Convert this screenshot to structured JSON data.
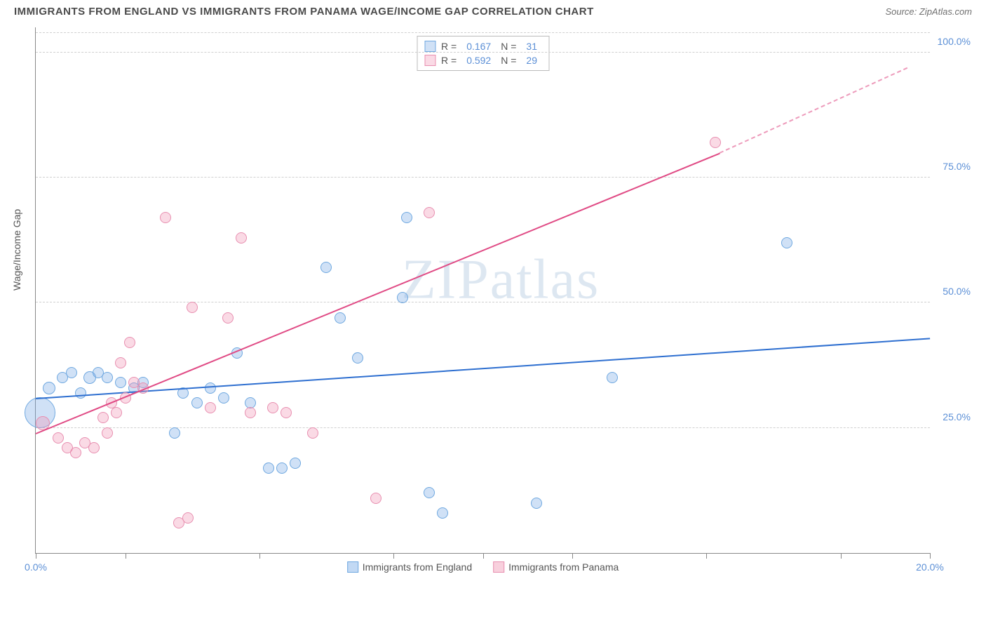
{
  "header": {
    "title": "IMMIGRANTS FROM ENGLAND VS IMMIGRANTS FROM PANAMA WAGE/INCOME GAP CORRELATION CHART",
    "source": "Source: ZipAtlas.com"
  },
  "watermark": "ZIPatlas",
  "chart": {
    "type": "scatter",
    "xlim": [
      0,
      20
    ],
    "ylim": [
      0,
      105
    ],
    "y_axis_title": "Wage/Income Gap",
    "y_ticks": [
      {
        "v": 25,
        "label": "25.0%"
      },
      {
        "v": 50,
        "label": "50.0%"
      },
      {
        "v": 75,
        "label": "75.0%"
      },
      {
        "v": 100,
        "label": "100.0%"
      }
    ],
    "x_ticks": [
      0,
      2,
      5,
      8,
      10,
      12,
      15,
      18,
      20
    ],
    "x_labels": [
      {
        "v": 0,
        "label": "0.0%"
      },
      {
        "v": 20,
        "label": "20.0%"
      }
    ],
    "grid_color": "#d0d0d0",
    "background_color": "#ffffff",
    "series": [
      {
        "name": "Immigrants from England",
        "color_fill": "rgba(120, 170, 230, 0.35)",
        "color_stroke": "#6fa8e0",
        "trend_color": "#2e6fd0",
        "R": "0.167",
        "N": "31",
        "trend": {
          "x1": 0,
          "y1": 31,
          "x2": 20,
          "y2": 43
        },
        "points": [
          {
            "x": 0.1,
            "y": 28,
            "r": 22
          },
          {
            "x": 0.3,
            "y": 33,
            "r": 9
          },
          {
            "x": 0.6,
            "y": 35,
            "r": 8
          },
          {
            "x": 0.8,
            "y": 36,
            "r": 8
          },
          {
            "x": 1.0,
            "y": 32,
            "r": 8
          },
          {
            "x": 1.2,
            "y": 35,
            "r": 9
          },
          {
            "x": 1.4,
            "y": 36,
            "r": 8
          },
          {
            "x": 1.6,
            "y": 35,
            "r": 8
          },
          {
            "x": 1.9,
            "y": 34,
            "r": 8
          },
          {
            "x": 2.2,
            "y": 33,
            "r": 8
          },
          {
            "x": 2.4,
            "y": 34,
            "r": 8
          },
          {
            "x": 3.1,
            "y": 24,
            "r": 8
          },
          {
            "x": 3.3,
            "y": 32,
            "r": 8
          },
          {
            "x": 3.6,
            "y": 30,
            "r": 8
          },
          {
            "x": 3.9,
            "y": 33,
            "r": 8
          },
          {
            "x": 4.2,
            "y": 31,
            "r": 8
          },
          {
            "x": 4.5,
            "y": 40,
            "r": 8
          },
          {
            "x": 4.8,
            "y": 30,
            "r": 8
          },
          {
            "x": 5.2,
            "y": 17,
            "r": 8
          },
          {
            "x": 5.5,
            "y": 17,
            "r": 8
          },
          {
            "x": 5.8,
            "y": 18,
            "r": 8
          },
          {
            "x": 6.5,
            "y": 57,
            "r": 8
          },
          {
            "x": 6.8,
            "y": 47,
            "r": 8
          },
          {
            "x": 7.2,
            "y": 39,
            "r": 8
          },
          {
            "x": 8.2,
            "y": 51,
            "r": 8
          },
          {
            "x": 8.3,
            "y": 67,
            "r": 8
          },
          {
            "x": 8.8,
            "y": 12,
            "r": 8
          },
          {
            "x": 9.1,
            "y": 8,
            "r": 8
          },
          {
            "x": 11.2,
            "y": 10,
            "r": 8
          },
          {
            "x": 12.9,
            "y": 35,
            "r": 8
          },
          {
            "x": 16.8,
            "y": 62,
            "r": 8
          }
        ]
      },
      {
        "name": "Immigrants from Panama",
        "color_fill": "rgba(240, 150, 180, 0.35)",
        "color_stroke": "#e88fb0",
        "trend_color": "#e04b85",
        "R": "0.592",
        "N": "29",
        "trend": {
          "x1": 0,
          "y1": 24,
          "x2": 15.3,
          "y2": 80
        },
        "trend_dash": {
          "x1": 15.3,
          "y1": 80,
          "x2": 19.5,
          "y2": 97
        },
        "points": [
          {
            "x": 0.15,
            "y": 26,
            "r": 10
          },
          {
            "x": 0.5,
            "y": 23,
            "r": 8
          },
          {
            "x": 0.7,
            "y": 21,
            "r": 8
          },
          {
            "x": 0.9,
            "y": 20,
            "r": 8
          },
          {
            "x": 1.1,
            "y": 22,
            "r": 8
          },
          {
            "x": 1.3,
            "y": 21,
            "r": 8
          },
          {
            "x": 1.5,
            "y": 27,
            "r": 8
          },
          {
            "x": 1.6,
            "y": 24,
            "r": 8
          },
          {
            "x": 1.7,
            "y": 30,
            "r": 8
          },
          {
            "x": 1.8,
            "y": 28,
            "r": 8
          },
          {
            "x": 1.9,
            "y": 38,
            "r": 8
          },
          {
            "x": 2.0,
            "y": 31,
            "r": 8
          },
          {
            "x": 2.1,
            "y": 42,
            "r": 8
          },
          {
            "x": 2.2,
            "y": 34,
            "r": 8
          },
          {
            "x": 2.4,
            "y": 33,
            "r": 8
          },
          {
            "x": 2.9,
            "y": 67,
            "r": 8
          },
          {
            "x": 3.2,
            "y": 6,
            "r": 8
          },
          {
            "x": 3.4,
            "y": 7,
            "r": 8
          },
          {
            "x": 3.5,
            "y": 49,
            "r": 8
          },
          {
            "x": 3.9,
            "y": 29,
            "r": 8
          },
          {
            "x": 4.3,
            "y": 47,
            "r": 8
          },
          {
            "x": 4.6,
            "y": 63,
            "r": 8
          },
          {
            "x": 4.8,
            "y": 28,
            "r": 8
          },
          {
            "x": 5.3,
            "y": 29,
            "r": 8
          },
          {
            "x": 5.6,
            "y": 28,
            "r": 8
          },
          {
            "x": 6.2,
            "y": 24,
            "r": 8
          },
          {
            "x": 7.6,
            "y": 11,
            "r": 8
          },
          {
            "x": 8.8,
            "y": 68,
            "r": 8
          },
          {
            "x": 15.2,
            "y": 82,
            "r": 8
          }
        ]
      }
    ]
  },
  "bottom_legend": [
    {
      "label": "Immigrants from England",
      "fill": "rgba(120, 170, 230, 0.45)",
      "stroke": "#6fa8e0"
    },
    {
      "label": "Immigrants from Panama",
      "fill": "rgba(240, 150, 180, 0.45)",
      "stroke": "#e88fb0"
    }
  ]
}
